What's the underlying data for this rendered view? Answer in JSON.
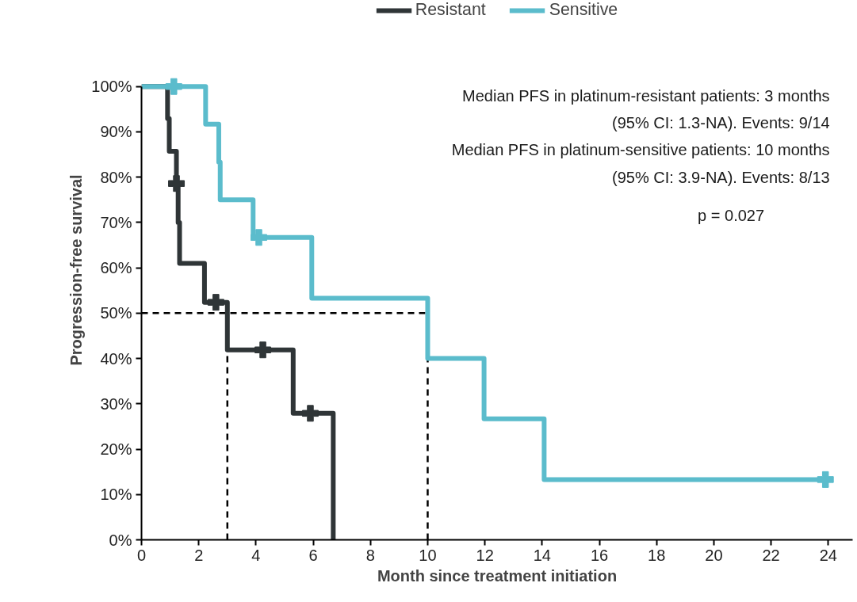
{
  "chart_data": {
    "type": "step",
    "xlabel": "Month since treatment initiation",
    "ylabel": "Progression-free survival",
    "xlim": [
      0,
      24.85
    ],
    "xticks": [
      0,
      2,
      4,
      6,
      8,
      10,
      12,
      14,
      16,
      18,
      20,
      22,
      24
    ],
    "ylim": [
      0,
      100
    ],
    "yticks": [
      {
        "value": 0,
        "label": "0%"
      },
      {
        "value": 10,
        "label": "10%"
      },
      {
        "value": 20,
        "label": "20%"
      },
      {
        "value": 30,
        "label": "30%"
      },
      {
        "value": 40,
        "label": "40%"
      },
      {
        "value": 50,
        "label": "50%"
      },
      {
        "value": 60,
        "label": "60%"
      },
      {
        "value": 70,
        "label": "70%"
      },
      {
        "value": 80,
        "label": "80%"
      },
      {
        "value": 90,
        "label": "90%"
      },
      {
        "value": 100,
        "label": "100%"
      }
    ],
    "grid": false,
    "legend": "top",
    "series": [
      {
        "name": "Resistant",
        "color": "#2f3537",
        "x": [
          0,
          0.91,
          0.97,
          1.22,
          1.28,
          1.33,
          2.2,
          3.0,
          5.3,
          6.7
        ],
        "values": [
          100,
          92.9,
          85.7,
          78.6,
          70.0,
          61.0,
          52.4,
          41.9,
          27.9,
          0
        ]
      },
      {
        "name": "Sensitive",
        "color": "#5bbccc",
        "x": [
          0,
          2.24,
          2.7,
          2.75,
          3.9,
          5.95,
          10.0,
          11.97,
          14.07,
          23.9
        ],
        "values": [
          100,
          91.7,
          83.3,
          75,
          66.7,
          53.3,
          40,
          26.7,
          13.3,
          13.3
        ]
      },
      {
        "type": "scatter",
        "marker": "cross",
        "color": "#2f3537",
        "x": [
          1.22,
          2.6,
          4.24,
          5.9
        ],
        "values": [
          78.6,
          52.4,
          41.9,
          27.9
        ]
      },
      {
        "type": "scatter",
        "marker": "cross",
        "color": "#5bbccc",
        "x": [
          1.13,
          4.1,
          23.9
        ],
        "values": [
          100,
          66.7,
          13.3
        ]
      }
    ],
    "ref_lines": [
      {
        "axis": "y",
        "value": 50,
        "color": "#000000",
        "line_style": "dashed"
      },
      {
        "axis": "x",
        "value": 3,
        "color": "#000000",
        "line_style": "dashed"
      },
      {
        "axis": "x",
        "value": 10,
        "color": "#000000",
        "line_style": "dashed"
      }
    ],
    "annotations": [
      "Median PFS in platinum-resistant patients: 3 months",
      "(95% CI: 1.3-NA). Events: 9/14",
      "Median PFS in platinum-sensitive patients: 10 months",
      "(95% CI: 3.9-NA). Events: 8/13",
      "p = 0.027"
    ]
  }
}
